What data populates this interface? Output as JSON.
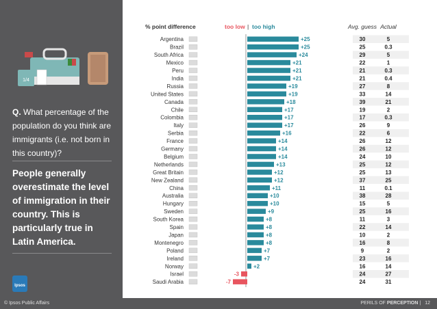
{
  "sidebar": {
    "question_prefix": "Q.",
    "question": "What percentage of the population do you think are immigrants  (i.e. not born in this country)?",
    "headline": "People generally overestimate the level of immigration in their country. This is particularly true in Latin America.",
    "logo_text": "Ipsos"
  },
  "footer": {
    "left": "© Ipsos Public Affairs",
    "right_prefix": "PERILS OF ",
    "right_bold": "PERCEPTION",
    "separator": "|",
    "page": "12"
  },
  "chart_data": {
    "type": "bar",
    "title": "% point difference",
    "legend": {
      "too_low": "too low",
      "separator": "|",
      "too_high": "too high",
      "too_low_color": "#e8555f",
      "too_high_color": "#2a8a9c"
    },
    "columns": {
      "avg_guess": "Avg. guess",
      "actual": "Actual"
    },
    "categories": [
      "Argentina",
      "Brazil",
      "South Africa",
      "Mexico",
      "Peru",
      "India",
      "Russia",
      "United States",
      "Canada",
      "Chile",
      "Colombia",
      "Italy",
      "Serbia",
      "France",
      "Germany",
      "Belgium",
      "Netherlands",
      "Great Britain",
      "New Zealand",
      "China",
      "Australia",
      "Hungary",
      "Sweden",
      "South Korea",
      "Spain",
      "Japan",
      "Montenegro",
      "Poland",
      "Ireland",
      "Norway",
      "Israel",
      "Saudi Arabia"
    ],
    "values": [
      25,
      25,
      24,
      21,
      21,
      21,
      19,
      19,
      18,
      17,
      17,
      17,
      16,
      14,
      14,
      14,
      13,
      12,
      12,
      11,
      10,
      10,
      9,
      8,
      8,
      8,
      8,
      7,
      7,
      2,
      -3,
      -7
    ],
    "labels": [
      "+25",
      "+25",
      "+24",
      "+21",
      "+21",
      "+21",
      "+19",
      "+19",
      "+18",
      "+17",
      "+17",
      "+17",
      "+16",
      "+14",
      "+14",
      "+14",
      "+13",
      "+12",
      "+12",
      "+11",
      "+10",
      "+10",
      "+9",
      "+8",
      "+8",
      "+8",
      "+8",
      "+7",
      "+7",
      "+2",
      "-3",
      "-7"
    ],
    "avg_guess": [
      "30",
      "25",
      "29",
      "22",
      "21",
      "21",
      "27",
      "33",
      "39",
      "19",
      "17",
      "26",
      "22",
      "26",
      "26",
      "24",
      "25",
      "25",
      "37",
      "11",
      "38",
      "15",
      "25",
      "11",
      "22",
      "10",
      "16",
      "9",
      "23",
      "16",
      "24",
      "24"
    ],
    "actual": [
      "5",
      "0.3",
      "5",
      "1",
      "0.3",
      "0.4",
      "8",
      "14",
      "21",
      "2",
      "0.3",
      "9",
      "6",
      "12",
      "12",
      "10",
      "12",
      "13",
      "25",
      "0.1",
      "28",
      "5",
      "16",
      "3",
      "14",
      "2",
      "8",
      "2",
      "16",
      "14",
      "27",
      "31"
    ]
  }
}
